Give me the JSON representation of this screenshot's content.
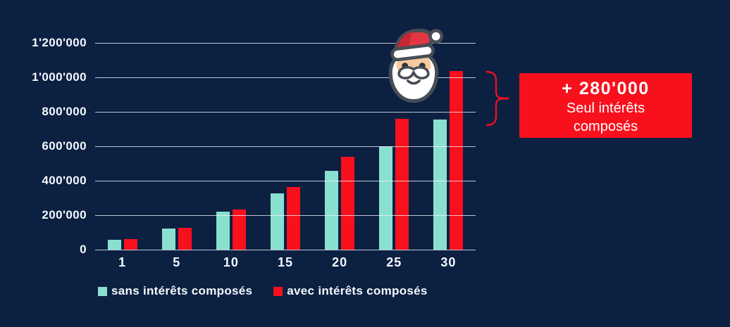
{
  "colors": {
    "background": "#0c2041",
    "gridline": "#eef5ff",
    "axis_text": "#f4f8ff",
    "bar_teal": "#8ae0cf",
    "bar_red": "#f8101d"
  },
  "chart_data": {
    "type": "bar",
    "title": "",
    "xlabel": "",
    "ylabel": "",
    "categories": [
      "1",
      "5",
      "10",
      "15",
      "20",
      "25",
      "30"
    ],
    "series": [
      {
        "name": "sans intérêts composés",
        "color": "#8ae0cf",
        "values": [
          58000,
          122000,
          220000,
          328000,
          458000,
          600000,
          755000
        ]
      },
      {
        "name": "avec intérêts composés",
        "color": "#f8101d",
        "values": [
          62000,
          128000,
          232000,
          362000,
          540000,
          760000,
          1035000
        ]
      }
    ],
    "ylim": [
      0,
      1200000
    ],
    "ytick_step": 200000,
    "ytick_labels": [
      "0",
      "200'000",
      "400'000",
      "600'000",
      "800'000",
      "1'000'000",
      "1'200'000"
    ],
    "grid": true,
    "gridlines_over_bars": true,
    "legend_position": "bottom-left",
    "annotation": "difference between series at year 30 = +280'000"
  },
  "legend": {
    "items": [
      {
        "label": "sans intérêts composés",
        "color": "#8ae0cf"
      },
      {
        "label": "avec intérêts composés",
        "color": "#f8101d"
      }
    ]
  },
  "callout": {
    "amount": "+ 280'000",
    "caption_line1": "Seul intérêts",
    "caption_line2": "composés",
    "background": "#f8101d",
    "text_color": "#ffffff"
  },
  "icons": {
    "santa": "santa-claus-face",
    "brace": "curly-brace-pointer"
  }
}
